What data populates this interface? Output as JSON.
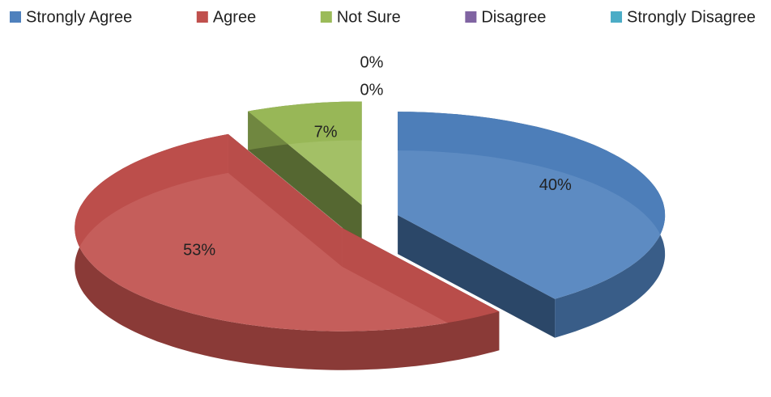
{
  "chart_data": {
    "type": "pie",
    "categories": [
      "Strongly Agree",
      "Agree",
      "Not Sure",
      "Disagree",
      "Strongly Disagree"
    ],
    "values": [
      40,
      53,
      7,
      0,
      0
    ],
    "value_labels": [
      "40%",
      "53%",
      "7%",
      "0%",
      "0%"
    ],
    "colors": [
      "#4f81bd",
      "#c0504d",
      "#9bbb59",
      "#8064a2",
      "#4bacc6"
    ],
    "legend": "top",
    "exploded": true,
    "three_d": true
  }
}
